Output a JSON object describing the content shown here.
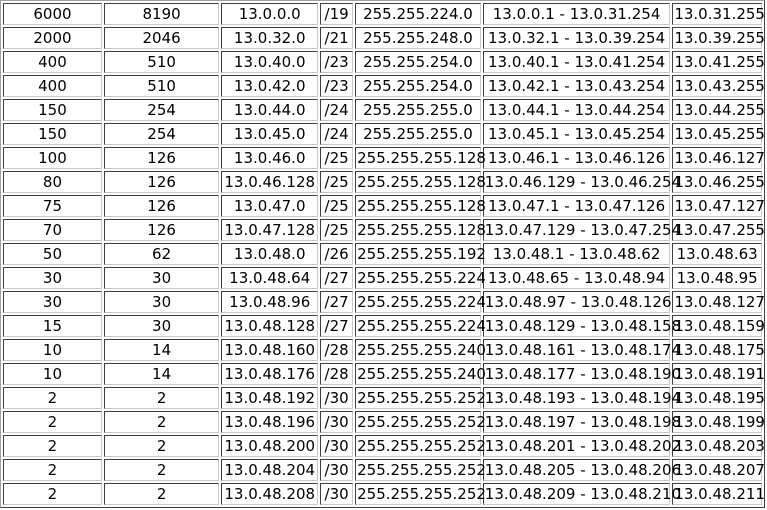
{
  "table": {
    "rows": [
      [
        "6000",
        "8190",
        "13.0.0.0",
        "/19",
        "255.255.224.0",
        "13.0.0.1 - 13.0.31.254",
        "13.0.31.255"
      ],
      [
        "2000",
        "2046",
        "13.0.32.0",
        "/21",
        "255.255.248.0",
        "13.0.32.1 - 13.0.39.254",
        "13.0.39.255"
      ],
      [
        "400",
        "510",
        "13.0.40.0",
        "/23",
        "255.255.254.0",
        "13.0.40.1 - 13.0.41.254",
        "13.0.41.255"
      ],
      [
        "400",
        "510",
        "13.0.42.0",
        "/23",
        "255.255.254.0",
        "13.0.42.1 - 13.0.43.254",
        "13.0.43.255"
      ],
      [
        "150",
        "254",
        "13.0.44.0",
        "/24",
        "255.255.255.0",
        "13.0.44.1 - 13.0.44.254",
        "13.0.44.255"
      ],
      [
        "150",
        "254",
        "13.0.45.0",
        "/24",
        "255.255.255.0",
        "13.0.45.1 - 13.0.45.254",
        "13.0.45.255"
      ],
      [
        "100",
        "126",
        "13.0.46.0",
        "/25",
        "255.255.255.128",
        "13.0.46.1 - 13.0.46.126",
        "13.0.46.127"
      ],
      [
        "80",
        "126",
        "13.0.46.128",
        "/25",
        "255.255.255.128",
        "13.0.46.129 - 13.0.46.254",
        "13.0.46.255"
      ],
      [
        "75",
        "126",
        "13.0.47.0",
        "/25",
        "255.255.255.128",
        "13.0.47.1 - 13.0.47.126",
        "13.0.47.127"
      ],
      [
        "70",
        "126",
        "13.0.47.128",
        "/25",
        "255.255.255.128",
        "13.0.47.129 - 13.0.47.254",
        "13.0.47.255"
      ],
      [
        "50",
        "62",
        "13.0.48.0",
        "/26",
        "255.255.255.192",
        "13.0.48.1 - 13.0.48.62",
        "13.0.48.63"
      ],
      [
        "30",
        "30",
        "13.0.48.64",
        "/27",
        "255.255.255.224",
        "13.0.48.65 - 13.0.48.94",
        "13.0.48.95"
      ],
      [
        "30",
        "30",
        "13.0.48.96",
        "/27",
        "255.255.255.224",
        "13.0.48.97 - 13.0.48.126",
        "13.0.48.127"
      ],
      [
        "15",
        "30",
        "13.0.48.128",
        "/27",
        "255.255.255.224",
        "13.0.48.129 - 13.0.48.158",
        "13.0.48.159"
      ],
      [
        "10",
        "14",
        "13.0.48.160",
        "/28",
        "255.255.255.240",
        "13.0.48.161 - 13.0.48.174",
        "13.0.48.175"
      ],
      [
        "10",
        "14",
        "13.0.48.176",
        "/28",
        "255.255.255.240",
        "13.0.48.177 - 13.0.48.190",
        "13.0.48.191"
      ],
      [
        "2",
        "2",
        "13.0.48.192",
        "/30",
        "255.255.255.252",
        "13.0.48.193 - 13.0.48.194",
        "13.0.48.195"
      ],
      [
        "2",
        "2",
        "13.0.48.196",
        "/30",
        "255.255.255.252",
        "13.0.48.197 - 13.0.48.198",
        "13.0.48.199"
      ],
      [
        "2",
        "2",
        "13.0.48.200",
        "/30",
        "255.255.255.252",
        "13.0.48.201 - 13.0.48.202",
        "13.0.48.203"
      ],
      [
        "2",
        "2",
        "13.0.48.204",
        "/30",
        "255.255.255.252",
        "13.0.48.205 - 13.0.48.206",
        "13.0.48.207"
      ],
      [
        "2",
        "2",
        "13.0.48.208",
        "/30",
        "255.255.255.252",
        "13.0.48.209 - 13.0.48.210",
        "13.0.48.211"
      ]
    ]
  }
}
